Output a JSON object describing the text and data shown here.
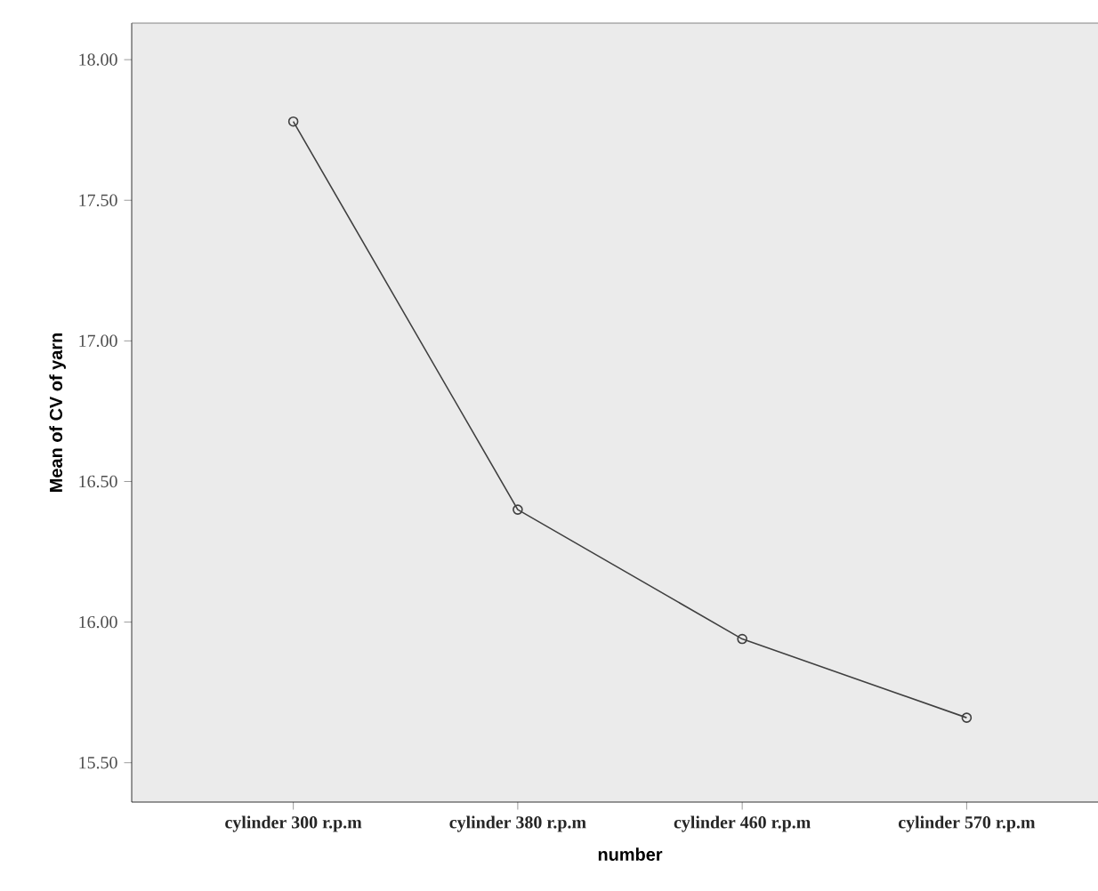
{
  "chart_data": {
    "type": "line",
    "xlabel": "number",
    "ylabel": "Mean of CV of yarn",
    "categories": [
      "cylinder 300 r.p.m",
      "cylinder 380 r.p.m",
      "cylinder 460 r.p.m",
      "cylinder 570 r.p.m"
    ],
    "series": [
      {
        "color": "#404040",
        "values": [
          17.78,
          16.4,
          15.94,
          15.66
        ]
      }
    ],
    "ylim": [
      15.36,
      18.13
    ],
    "yticks": [
      {
        "value": 15.5,
        "label": "15.50"
      },
      {
        "value": 16.0,
        "label": "16.00"
      },
      {
        "value": 16.5,
        "label": "16.50"
      },
      {
        "value": 17.0,
        "label": "17.00"
      },
      {
        "value": 17.5,
        "label": "17.50"
      },
      {
        "value": 18.0,
        "label": "18.00"
      }
    ],
    "marker": "circle",
    "grid": false
  }
}
